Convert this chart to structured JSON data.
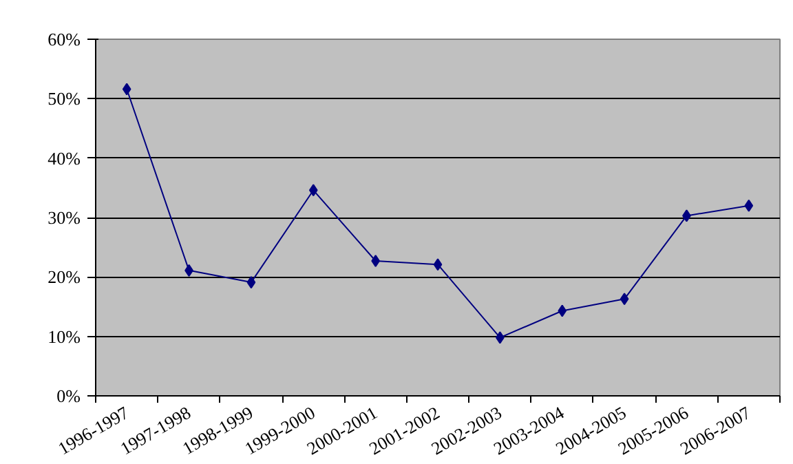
{
  "chart_data": {
    "type": "line",
    "categories": [
      "1996-1997",
      "1997-1998",
      "1998-1999",
      "1999-2000",
      "2000-2001",
      "2001-2002",
      "2002-2003",
      "2003-2004",
      "2004-2005",
      "2005-2006",
      "2006-2007"
    ],
    "series": [
      {
        "color": "#000080",
        "values": [
          51.6,
          21.1,
          19.1,
          34.6,
          22.7,
          22.1,
          9.8,
          14.3,
          16.3,
          30.3,
          32.0
        ]
      }
    ],
    "ylim": [
      0,
      60
    ],
    "yticks": [
      {
        "value": 0,
        "label": "0%"
      },
      {
        "value": 10,
        "label": "10%"
      },
      {
        "value": 20,
        "label": "20%"
      },
      {
        "value": 30,
        "label": "30%"
      },
      {
        "value": 40,
        "label": "40%"
      },
      {
        "value": 50,
        "label": "50%"
      },
      {
        "value": 60,
        "label": "60%"
      }
    ],
    "grid": "y",
    "marker": "diamond",
    "line_style": "solid"
  }
}
